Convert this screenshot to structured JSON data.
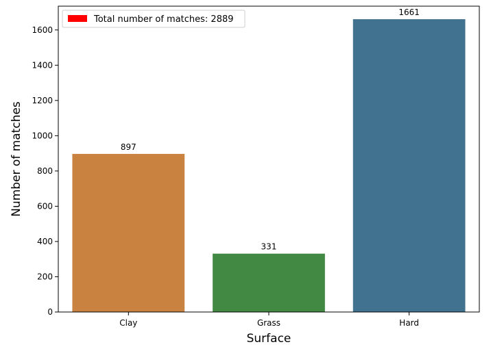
{
  "chart_data": {
    "type": "bar",
    "categories": [
      "Clay",
      "Grass",
      "Hard"
    ],
    "values": [
      897,
      331,
      1661
    ],
    "value_labels": [
      "897",
      "331",
      "1661"
    ],
    "colors": [
      "#c98240",
      "#428a43",
      "#41728f"
    ],
    "xlabel": "Surface",
    "ylabel": "Number of matches",
    "ylim": [
      0,
      1735
    ],
    "yticks": [
      0,
      200,
      400,
      600,
      800,
      1000,
      1200,
      1400,
      1600
    ],
    "grid": false,
    "legend": {
      "position": "top-left",
      "entries": [
        {
          "label": "Total number of matches: 2889",
          "color": "#ff0000"
        }
      ]
    }
  }
}
